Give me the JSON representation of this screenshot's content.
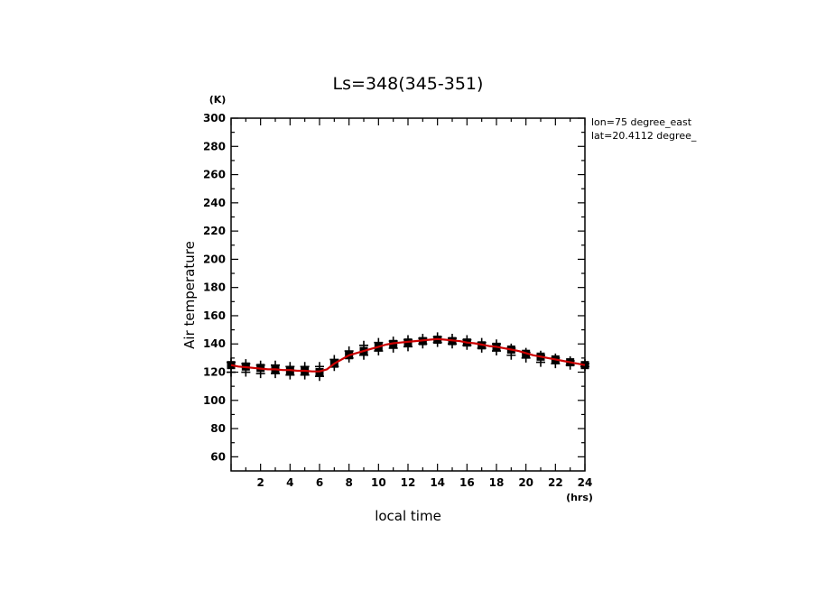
{
  "chart_data": {
    "type": "line",
    "title": "Ls=348(345-351)",
    "xlabel": "local time",
    "ylabel": "Air temperature",
    "x_unit": "(hrs)",
    "y_unit": "(K)",
    "xlim": [
      0,
      24
    ],
    "ylim": [
      50,
      300
    ],
    "x_ticks": [
      2,
      4,
      6,
      8,
      10,
      12,
      14,
      16,
      18,
      20,
      22,
      24
    ],
    "y_ticks": [
      60,
      80,
      100,
      120,
      140,
      160,
      180,
      200,
      220,
      240,
      260,
      280,
      300
    ],
    "annotations": [
      "lon=75 degree_east",
      "lat=20.4112 degree_"
    ],
    "grid": false,
    "series": [
      {
        "style": "line",
        "color": "#cc0000",
        "x": [
          0,
          0.5,
          1,
          1.5,
          2,
          2.5,
          3,
          3.5,
          4,
          4.5,
          5,
          5.5,
          6,
          6.5,
          7,
          7.5,
          8,
          8.5,
          9,
          9.5,
          10,
          10.5,
          11,
          11.5,
          12,
          12.5,
          13,
          13.5,
          14,
          14.5,
          15,
          15.5,
          16,
          16.5,
          17,
          17.5,
          18,
          18.5,
          19,
          19.5,
          20,
          20.5,
          21,
          21.5,
          22,
          22.5,
          23,
          23.5,
          24
        ],
        "y": [
          125,
          124,
          123.5,
          123,
          122.5,
          122,
          122,
          121.5,
          121.5,
          121,
          121,
          120.5,
          120.5,
          122,
          126,
          129,
          132,
          133.5,
          135,
          136.5,
          138,
          139.5,
          140.5,
          141,
          141.5,
          142,
          142.5,
          143,
          143.5,
          143,
          142.5,
          142,
          141,
          140.5,
          139.5,
          138.5,
          138,
          137,
          136,
          135,
          133.5,
          132,
          131,
          130,
          129,
          128,
          127,
          126,
          125
        ]
      },
      {
        "style": "square-markers",
        "color": "#000000",
        "x": [
          0,
          1,
          2,
          3,
          4,
          5,
          6,
          7,
          8,
          9,
          10,
          11,
          12,
          13,
          14,
          15,
          16,
          17,
          18,
          19,
          20,
          21,
          22,
          23,
          24
        ],
        "y": [
          125,
          124,
          123,
          122,
          121,
          121,
          120,
          126,
          132,
          135,
          138,
          140,
          141,
          142,
          143,
          142,
          141,
          139,
          138,
          136,
          133,
          131,
          129,
          127,
          125
        ]
      },
      {
        "style": "cross-markers",
        "color": "#000000",
        "x": [
          0,
          0,
          1,
          1,
          2,
          2,
          3,
          3,
          4,
          4,
          5,
          5,
          6,
          6,
          7,
          7,
          8,
          8,
          9,
          9,
          10,
          10,
          11,
          11,
          12,
          12,
          13,
          13,
          14,
          14,
          15,
          15,
          16,
          16,
          17,
          17,
          18,
          18,
          19,
          19,
          20,
          20,
          21,
          21,
          22,
          22,
          23,
          23,
          24,
          24
        ],
        "y": [
          127,
          120,
          126,
          120,
          125,
          119,
          125,
          119,
          124,
          118,
          124,
          118,
          124,
          117,
          129,
          124,
          135,
          130,
          139,
          132,
          141,
          135,
          142,
          137,
          143,
          138,
          144,
          140,
          145,
          141,
          144,
          140,
          143,
          139,
          141,
          137,
          140,
          135,
          137,
          132,
          134,
          130,
          132,
          127,
          130,
          126,
          128,
          125,
          126,
          124
        ]
      }
    ]
  }
}
